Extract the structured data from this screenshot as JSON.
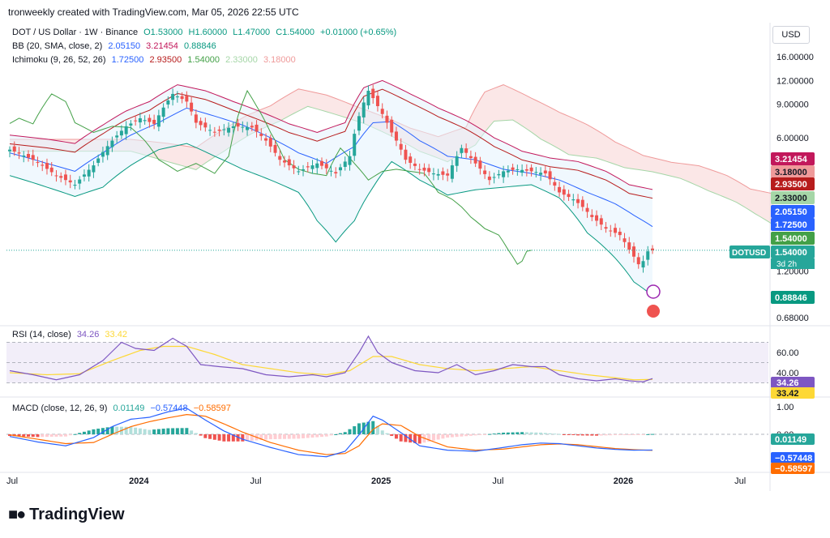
{
  "header": "tronweekly created with TradingView.com, Mar 05, 2026 22:55 UTC",
  "legend": {
    "main": {
      "name": "DOT / US Dollar · 1W · Binance",
      "o": "O1.53000",
      "h": "H1.60000",
      "l": "L1.47000",
      "c": "C1.54000",
      "chg": "+0.01000 (+0.65%)"
    },
    "bb": {
      "name": "BB (20, SMA, close, 2)",
      "v1": "2.05150",
      "v2": "3.21454",
      "v3": "0.88846"
    },
    "ichi": {
      "name": "Ichimoku (9, 26, 52, 26)",
      "v1": "1.72500",
      "v2": "2.93500",
      "v3": "1.54000",
      "v4": "2.33000",
      "v5": "3.18000"
    },
    "rsi": {
      "name": "RSI (14, close)",
      "v1": "34.26",
      "v2": "33.42"
    },
    "macd": {
      "name": "MACD (close, 12, 26, 9)",
      "v1": "0.01149",
      "v2": "−0.57448",
      "v3": "−0.58597"
    }
  },
  "currency_button": "USD",
  "symbol_tag": "DOTUSD",
  "countdown": "3d 2h",
  "logo_text": "TradingView",
  "colors": {
    "up": "#26a69a",
    "down": "#ef5350",
    "bb_mid": "#2962ff",
    "bb_up": "#c2185b",
    "bb_lo": "#089981",
    "ichi_conv": "#2962ff",
    "ichi_base": "#b71c1c",
    "lag": "#43a047",
    "spanA": "#a5d6a7",
    "spanB": "#ef9a9a",
    "rsi": "#7e57c2",
    "rsi_ma": "#fdd835",
    "macd": "#2962ff",
    "signal": "#ff6d00"
  },
  "chart_data": [
    {
      "type": "candlestick",
      "title": "DOT / US Dollar · 1W · Binance",
      "scale": "log",
      "y_ticks": [
        0.68,
        1.2,
        1.54,
        2.33,
        2.935,
        3.18,
        4.0,
        6.0,
        9.0,
        12.0,
        16.0
      ],
      "y_tick_labels": [
        "0.68000",
        "1.20000",
        "",
        "",
        "",
        "",
        "",
        "6.00000",
        "9.00000",
        "12.00000",
        "16.00000"
      ],
      "x_labels": [
        "Jul",
        "2024",
        "Jul",
        "2025",
        "Jul",
        "2026",
        "Jul"
      ],
      "x_label_weeks": [
        0,
        27,
        53,
        79,
        105,
        131,
        157
      ],
      "last_week": 138,
      "close_path_anchors": [
        [
          0,
          5.2
        ],
        [
          5,
          4.6
        ],
        [
          10,
          3.8
        ],
        [
          14,
          3.4
        ],
        [
          18,
          4.3
        ],
        [
          22,
          5.8
        ],
        [
          25,
          6.9
        ],
        [
          28,
          7.6
        ],
        [
          31,
          7.1
        ],
        [
          35,
          10.2
        ],
        [
          38,
          9.3
        ],
        [
          40,
          7.2
        ],
        [
          44,
          6.4
        ],
        [
          48,
          6.9
        ],
        [
          52,
          6.8
        ],
        [
          55,
          5.8
        ],
        [
          58,
          4.6
        ],
        [
          62,
          4.0
        ],
        [
          66,
          4.4
        ],
        [
          70,
          3.9
        ],
        [
          73,
          4.8
        ],
        [
          75,
          7.8
        ],
        [
          77,
          10.6
        ],
        [
          79,
          8.8
        ],
        [
          82,
          6.4
        ],
        [
          85,
          4.6
        ],
        [
          88,
          4.1
        ],
        [
          91,
          3.9
        ],
        [
          94,
          3.8
        ],
        [
          97,
          5.3
        ],
        [
          100,
          4.4
        ],
        [
          103,
          3.6
        ],
        [
          106,
          4.0
        ],
        [
          109,
          4.1
        ],
        [
          112,
          4.0
        ],
        [
          115,
          3.9
        ],
        [
          118,
          3.1
        ],
        [
          121,
          2.85
        ],
        [
          123,
          2.6
        ],
        [
          125,
          2.3
        ],
        [
          128,
          2.0
        ],
        [
          131,
          1.85
        ],
        [
          133,
          1.55
        ],
        [
          135,
          1.3
        ],
        [
          136,
          1.35
        ],
        [
          137,
          1.52
        ],
        [
          138,
          1.54
        ]
      ],
      "bb_upper_anchors": [
        [
          0,
          6.2
        ],
        [
          8,
          5.9
        ],
        [
          14,
          5.6
        ],
        [
          20,
          7.0
        ],
        [
          25,
          8.3
        ],
        [
          30,
          9.3
        ],
        [
          36,
          11.4
        ],
        [
          42,
          10.6
        ],
        [
          48,
          9.3
        ],
        [
          54,
          8.2
        ],
        [
          60,
          7.1
        ],
        [
          66,
          6.4
        ],
        [
          72,
          7.2
        ],
        [
          76,
          11.0
        ],
        [
          80,
          12.0
        ],
        [
          86,
          10.2
        ],
        [
          92,
          8.6
        ],
        [
          98,
          7.4
        ],
        [
          104,
          6.0
        ],
        [
          110,
          5.1
        ],
        [
          116,
          4.7
        ],
        [
          122,
          4.5
        ],
        [
          128,
          4.0
        ],
        [
          133,
          3.4
        ],
        [
          138,
          3.21
        ]
      ],
      "bb_mid_anchors": [
        [
          0,
          5.0
        ],
        [
          8,
          4.4
        ],
        [
          14,
          4.0
        ],
        [
          20,
          5.0
        ],
        [
          26,
          6.2
        ],
        [
          32,
          7.2
        ],
        [
          38,
          8.6
        ],
        [
          44,
          7.8
        ],
        [
          50,
          7.0
        ],
        [
          56,
          6.0
        ],
        [
          62,
          5.0
        ],
        [
          68,
          4.4
        ],
        [
          74,
          5.4
        ],
        [
          78,
          7.2
        ],
        [
          82,
          7.3
        ],
        [
          88,
          5.8
        ],
        [
          94,
          4.8
        ],
        [
          100,
          4.6
        ],
        [
          106,
          4.1
        ],
        [
          112,
          3.9
        ],
        [
          118,
          3.6
        ],
        [
          124,
          3.1
        ],
        [
          130,
          2.7
        ],
        [
          134,
          2.35
        ],
        [
          138,
          2.05
        ]
      ],
      "bb_lower_anchors": [
        [
          0,
          3.8
        ],
        [
          8,
          3.3
        ],
        [
          14,
          2.95
        ],
        [
          20,
          3.3
        ],
        [
          26,
          4.3
        ],
        [
          32,
          5.2
        ],
        [
          38,
          5.6
        ],
        [
          44,
          4.8
        ],
        [
          50,
          4.1
        ],
        [
          56,
          3.6
        ],
        [
          62,
          3.1
        ],
        [
          66,
          2.2
        ],
        [
          70,
          1.7
        ],
        [
          74,
          2.2
        ],
        [
          78,
          3.3
        ],
        [
          82,
          4.5
        ],
        [
          88,
          3.6
        ],
        [
          94,
          3.0
        ],
        [
          100,
          3.2
        ],
        [
          106,
          3.3
        ],
        [
          112,
          3.4
        ],
        [
          118,
          2.9
        ],
        [
          124,
          1.9
        ],
        [
          130,
          1.4
        ],
        [
          134,
          1.05
        ],
        [
          138,
          0.89
        ]
      ],
      "ichimoku_last": {
        "conversion": 1.725,
        "base": 2.935,
        "lagging": 1.54,
        "span_a": 2.33,
        "span_b": 3.18
      }
    },
    {
      "type": "line",
      "title": "RSI (14, close)",
      "ylim": [
        20,
        80
      ],
      "y_ticks": [
        40,
        60
      ],
      "bands": [
        30,
        50,
        70
      ],
      "rsi_last": 34.26,
      "ma_last": 33.42,
      "rsi_anchors": [
        [
          0,
          42
        ],
        [
          5,
          38
        ],
        [
          10,
          33
        ],
        [
          15,
          38
        ],
        [
          20,
          52
        ],
        [
          24,
          70
        ],
        [
          27,
          64
        ],
        [
          31,
          62
        ],
        [
          35,
          74
        ],
        [
          38,
          66
        ],
        [
          41,
          48
        ],
        [
          45,
          46
        ],
        [
          50,
          44
        ],
        [
          55,
          38
        ],
        [
          60,
          36
        ],
        [
          65,
          38
        ],
        [
          68,
          36
        ],
        [
          72,
          40
        ],
        [
          75,
          60
        ],
        [
          77,
          76
        ],
        [
          79,
          60
        ],
        [
          82,
          50
        ],
        [
          87,
          42
        ],
        [
          92,
          40
        ],
        [
          96,
          48
        ],
        [
          100,
          38
        ],
        [
          104,
          42
        ],
        [
          108,
          48
        ],
        [
          112,
          46
        ],
        [
          115,
          46
        ],
        [
          118,
          38
        ],
        [
          122,
          34
        ],
        [
          126,
          32
        ],
        [
          130,
          34
        ],
        [
          133,
          32
        ],
        [
          136,
          31
        ],
        [
          138,
          34.26
        ]
      ],
      "ma_anchors": [
        [
          0,
          40
        ],
        [
          8,
          38
        ],
        [
          15,
          39
        ],
        [
          22,
          52
        ],
        [
          28,
          62
        ],
        [
          33,
          66
        ],
        [
          38,
          66
        ],
        [
          44,
          58
        ],
        [
          50,
          48
        ],
        [
          56,
          44
        ],
        [
          62,
          40
        ],
        [
          68,
          38
        ],
        [
          73,
          42
        ],
        [
          78,
          56
        ],
        [
          82,
          56
        ],
        [
          88,
          48
        ],
        [
          94,
          44
        ],
        [
          100,
          42
        ],
        [
          106,
          44
        ],
        [
          112,
          46
        ],
        [
          118,
          42
        ],
        [
          124,
          38
        ],
        [
          130,
          35
        ],
        [
          134,
          33
        ],
        [
          138,
          33.42
        ]
      ]
    },
    {
      "type": "bar+line",
      "title": "MACD (close, 12, 26, 9)",
      "ylim": [
        -1.3,
        1.3
      ],
      "y_ticks": [
        1.0,
        0.0
      ],
      "macd_last": 0.01149,
      "macd_line_last": -0.57448,
      "signal_last": -0.58597,
      "macd_anchors": [
        [
          0,
          -0.08
        ],
        [
          6,
          -0.28
        ],
        [
          12,
          -0.42
        ],
        [
          18,
          -0.12
        ],
        [
          22,
          0.28
        ],
        [
          26,
          0.55
        ],
        [
          30,
          0.62
        ],
        [
          34,
          0.82
        ],
        [
          38,
          0.95
        ],
        [
          42,
          0.52
        ],
        [
          46,
          0.12
        ],
        [
          50,
          -0.18
        ],
        [
          56,
          -0.48
        ],
        [
          62,
          -0.74
        ],
        [
          68,
          -0.82
        ],
        [
          72,
          -0.62
        ],
        [
          75,
          -0.02
        ],
        [
          78,
          0.66
        ],
        [
          80,
          0.52
        ],
        [
          84,
          0.06
        ],
        [
          88,
          -0.42
        ],
        [
          94,
          -0.58
        ],
        [
          100,
          -0.62
        ],
        [
          106,
          -0.48
        ],
        [
          110,
          -0.38
        ],
        [
          114,
          -0.32
        ],
        [
          118,
          -0.34
        ],
        [
          122,
          -0.42
        ],
        [
          126,
          -0.5
        ],
        [
          130,
          -0.55
        ],
        [
          134,
          -0.58
        ],
        [
          138,
          -0.5745
        ]
      ],
      "signal_anchors": [
        [
          0,
          -0.02
        ],
        [
          6,
          -0.18
        ],
        [
          12,
          -0.34
        ],
        [
          18,
          -0.3
        ],
        [
          22,
          0.0
        ],
        [
          26,
          0.28
        ],
        [
          30,
          0.46
        ],
        [
          34,
          0.6
        ],
        [
          38,
          0.72
        ],
        [
          42,
          0.66
        ],
        [
          46,
          0.38
        ],
        [
          50,
          0.08
        ],
        [
          56,
          -0.3
        ],
        [
          62,
          -0.58
        ],
        [
          68,
          -0.74
        ],
        [
          72,
          -0.7
        ],
        [
          75,
          -0.42
        ],
        [
          78,
          0.18
        ],
        [
          80,
          0.38
        ],
        [
          84,
          0.32
        ],
        [
          88,
          -0.08
        ],
        [
          94,
          -0.46
        ],
        [
          100,
          -0.58
        ],
        [
          106,
          -0.54
        ],
        [
          110,
          -0.46
        ],
        [
          114,
          -0.38
        ],
        [
          118,
          -0.35
        ],
        [
          122,
          -0.38
        ],
        [
          126,
          -0.45
        ],
        [
          130,
          -0.52
        ],
        [
          134,
          -0.56
        ],
        [
          138,
          -0.586
        ]
      ]
    }
  ],
  "price_tags": [
    {
      "label": "3.21454",
      "value": 3.21454,
      "color": "#c2185b"
    },
    {
      "label": "3.18000",
      "value": 3.18,
      "color": "#ef9a9a"
    },
    {
      "label": "2.93500",
      "value": 2.935,
      "color": "#b71c1c"
    },
    {
      "label": "2.33000",
      "value": 2.33,
      "color": "#a5d6a7"
    },
    {
      "label": "2.05150",
      "value": 2.0515,
      "color": "#2962ff"
    },
    {
      "label": "1.72500",
      "value": 1.725,
      "color": "#2962ff"
    },
    {
      "label": "1.54000",
      "value": 1.54,
      "color": "#43a047"
    },
    {
      "label": "1.54000",
      "value": 1.54,
      "color": "#26a69a"
    },
    {
      "label": "0.88846",
      "value": 0.88846,
      "color": "#089981"
    }
  ],
  "rsi_tags": [
    {
      "label": "34.26",
      "value": 34.26,
      "color": "#7e57c2"
    },
    {
      "label": "33.42",
      "value": 33.42,
      "color": "#fdd835"
    }
  ],
  "macd_tags": [
    {
      "label": "0.01149",
      "value": 0.01149,
      "color": "#26a69a"
    },
    {
      "label": "−0.57448",
      "value": -0.57448,
      "color": "#2962ff"
    },
    {
      "label": "−0.58597",
      "value": -0.58597,
      "color": "#ff6d00"
    }
  ]
}
